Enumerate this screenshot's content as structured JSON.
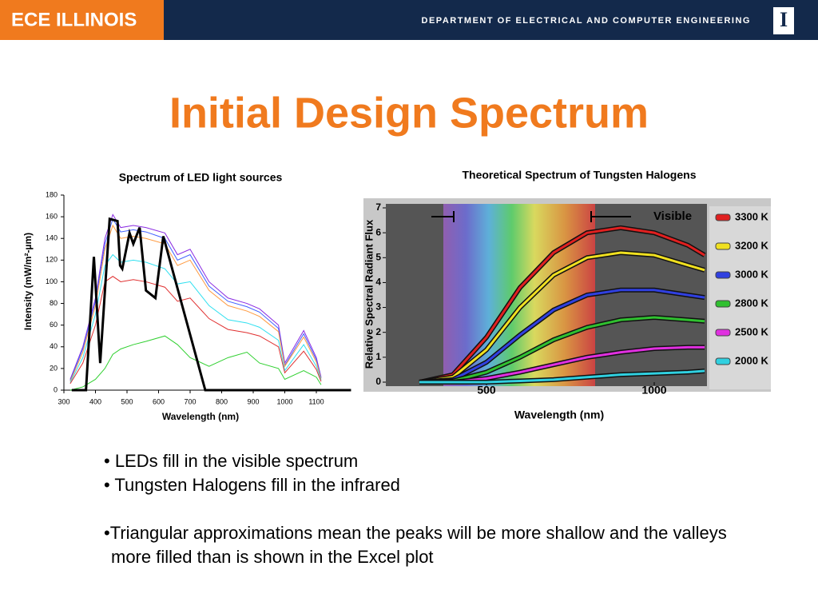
{
  "header": {
    "brand": "ECE ILLINOIS",
    "department": "DEPARTMENT OF ELECTRICAL AND COMPUTER ENGINEERING",
    "logo": "I"
  },
  "title": "Initial Design Spectrum",
  "chart_data": [
    {
      "type": "line",
      "title": "Spectrum of LED light sources",
      "x_label": "Wavelength (nm)",
      "y_label": "Intensity  (mW/m²-µm)",
      "xlim": [
        300,
        1200
      ],
      "xticks": [
        300,
        400,
        500,
        600,
        700,
        800,
        900,
        1000,
        1100
      ],
      "ylim": [
        0,
        180
      ],
      "yticks": [
        0,
        20,
        40,
        60,
        80,
        100,
        120,
        140,
        160,
        180
      ],
      "x": [
        320,
        360,
        400,
        430,
        455,
        480,
        520,
        560,
        620,
        660,
        700,
        760,
        820,
        880,
        920,
        980,
        1000,
        1060,
        1100,
        1115
      ],
      "series": [
        {
          "color": "#8a2be2",
          "values": [
            10,
            40,
            85,
            140,
            162,
            150,
            152,
            150,
            145,
            125,
            130,
            100,
            85,
            80,
            75,
            60,
            25,
            55,
            30,
            12
          ]
        },
        {
          "color": "#4060ff",
          "values": [
            9,
            38,
            82,
            135,
            158,
            146,
            148,
            146,
            140,
            120,
            125,
            96,
            82,
            77,
            72,
            57,
            23,
            52,
            28,
            11
          ]
        },
        {
          "color": "#ff9a40",
          "values": [
            8,
            35,
            78,
            130,
            152,
            140,
            142,
            140,
            135,
            115,
            120,
            92,
            78,
            73,
            68,
            54,
            22,
            49,
            26,
            10
          ]
        },
        {
          "color": "#30e0f0",
          "values": [
            7,
            30,
            70,
            115,
            125,
            118,
            120,
            118,
            112,
            98,
            100,
            78,
            65,
            62,
            58,
            46,
            18,
            42,
            22,
            9
          ]
        },
        {
          "color": "#e03030",
          "values": [
            6,
            25,
            60,
            100,
            105,
            100,
            102,
            100,
            95,
            82,
            85,
            66,
            56,
            53,
            50,
            40,
            16,
            36,
            19,
            8
          ]
        },
        {
          "color": "#30d030",
          "values": [
            0,
            3,
            10,
            20,
            33,
            38,
            42,
            45,
            50,
            42,
            30,
            22,
            30,
            35,
            25,
            20,
            10,
            18,
            12,
            5
          ]
        }
      ],
      "approximation": {
        "color": "#000000",
        "x": [
          325,
          370,
          395,
          415,
          445,
          470,
          478,
          485,
          508,
          520,
          540,
          560,
          590,
          615,
          748,
          1210
        ],
        "values": [
          0,
          0,
          123,
          25,
          158,
          156,
          115,
          112,
          145,
          135,
          150,
          92,
          85,
          142,
          0,
          0
        ]
      }
    },
    {
      "type": "line",
      "title": "Theoretical Spectrum of Tungsten Halogens",
      "x_label": "Wavelength (nm)",
      "y_label": "Relative Spectral Radiant Flux",
      "annotation": "Visible",
      "xlim": [
        200,
        1150
      ],
      "xticks": [
        500,
        1000
      ],
      "ylim": [
        0,
        7
      ],
      "yticks": [
        0,
        1,
        2,
        3,
        4,
        5,
        6,
        7
      ],
      "x": [
        300,
        400,
        500,
        600,
        700,
        800,
        900,
        1000,
        1100,
        1150
      ],
      "series": [
        {
          "name": "3300 K",
          "color": "#e02020",
          "values": [
            0,
            0.3,
            1.8,
            3.8,
            5.2,
            6,
            6.2,
            6.0,
            5.5,
            5.1
          ]
        },
        {
          "name": "3200 K",
          "color": "#f0e020",
          "values": [
            0,
            0.2,
            1.3,
            3.0,
            4.3,
            5.0,
            5.2,
            5.1,
            4.7,
            4.5
          ]
        },
        {
          "name": "3000 K",
          "color": "#3040e0",
          "values": [
            0,
            0.1,
            0.8,
            1.9,
            2.9,
            3.5,
            3.7,
            3.7,
            3.5,
            3.4
          ]
        },
        {
          "name": "2800 K",
          "color": "#30c030",
          "values": [
            0,
            0.05,
            0.4,
            1.0,
            1.7,
            2.2,
            2.5,
            2.6,
            2.5,
            2.45
          ]
        },
        {
          "name": "2500 K",
          "color": "#e030e0",
          "values": [
            0,
            0,
            0.15,
            0.4,
            0.7,
            1.0,
            1.2,
            1.35,
            1.4,
            1.4
          ]
        },
        {
          "name": "2000 K",
          "color": "#30d0e0",
          "values": [
            0,
            0,
            0,
            0.05,
            0.1,
            0.2,
            0.3,
            0.35,
            0.4,
            0.45
          ]
        }
      ]
    }
  ],
  "bullets": [
    "• LEDs fill in the visible spectrum",
    "• Tungsten Halogens fill in the infrared",
    "•Triangular approximations mean the peaks will be more shallow and the valleys more filled than is shown in the Excel plot"
  ]
}
